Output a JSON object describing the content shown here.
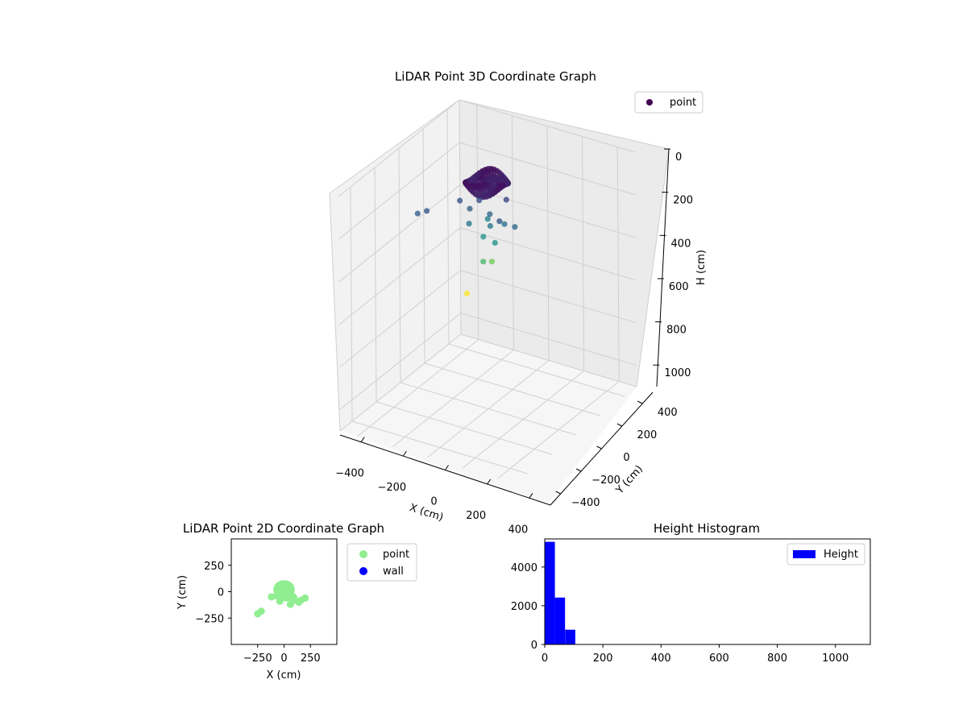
{
  "chart_data": [
    {
      "type": "scatter3d",
      "title": "LiDAR Point 3D Coordinate Graph",
      "xlabel": "X (cm)",
      "ylabel": "Y (cm)",
      "zlabel": "H (cm)",
      "xlim": [
        -500,
        500
      ],
      "ylim": [
        -500,
        500
      ],
      "zlim": [
        0,
        1100
      ],
      "z_inverted": true,
      "x_ticks": [
        -400,
        -200,
        0,
        200,
        400
      ],
      "y_ticks": [
        -400,
        -200,
        0,
        200,
        400
      ],
      "z_ticks": [
        0,
        200,
        400,
        600,
        800,
        1000
      ],
      "grid": true,
      "legend": {
        "position": "top-right",
        "entries": [
          "point"
        ]
      },
      "colormap": "viridis",
      "cluster": {
        "center_x": 0,
        "center_y": 0,
        "center_h": 40,
        "radius": 100
      },
      "outliers": [
        {
          "x": -250,
          "y": -210,
          "h": 150
        },
        {
          "x": -215,
          "y": -185,
          "h": 140
        },
        {
          "x": -120,
          "y": -50,
          "h": 130
        },
        {
          "x": -70,
          "y": -40,
          "h": 160
        },
        {
          "x": -40,
          "y": -90,
          "h": 200
        },
        {
          "x": 20,
          "y": -60,
          "h": 260
        },
        {
          "x": 60,
          "y": -120,
          "h": 340
        },
        {
          "x": -20,
          "y": -140,
          "h": 500
        },
        {
          "x": 40,
          "y": -20,
          "h": 390
        },
        {
          "x": 100,
          "y": -80,
          "h": 260
        },
        {
          "x": 140,
          "y": -100,
          "h": 140
        },
        {
          "x": 90,
          "y": 30,
          "h": 110
        },
        {
          "x": 120,
          "y": -30,
          "h": 190
        },
        {
          "x": -10,
          "y": 20,
          "h": 220
        },
        {
          "x": 30,
          "y": -20,
          "h": 170
        },
        {
          "x": -30,
          "y": -20,
          "h": 120
        },
        {
          "x": 60,
          "y": -60,
          "h": 200
        },
        {
          "x": 200,
          "y": -60,
          "h": 170
        }
      ]
    },
    {
      "type": "scatter",
      "title": "LiDAR Point 2D Coordinate Graph",
      "xlabel": "X (cm)",
      "ylabel": "Y (cm)",
      "xlim": [
        -500,
        500
      ],
      "ylim": [
        -500,
        500
      ],
      "x_ticks": [
        -250,
        0,
        250
      ],
      "y_ticks": [
        -250,
        0,
        250
      ],
      "legend": {
        "position": "outside-right",
        "entries": [
          "point",
          "wall"
        ]
      },
      "series": [
        {
          "name": "point",
          "color": "#90ee90",
          "cluster": {
            "cx": 0,
            "cy": 20,
            "rx": 100,
            "ry": 80
          },
          "points": [
            {
              "x": -250,
              "y": -210
            },
            {
              "x": -215,
              "y": -185
            },
            {
              "x": -120,
              "y": -50
            },
            {
              "x": -70,
              "y": -40
            },
            {
              "x": -40,
              "y": -90
            },
            {
              "x": 20,
              "y": -60
            },
            {
              "x": 60,
              "y": -120
            },
            {
              "x": 100,
              "y": -80
            },
            {
              "x": 140,
              "y": -100
            },
            {
              "x": 90,
              "y": -50
            },
            {
              "x": 160,
              "y": -80
            },
            {
              "x": 200,
              "y": -60
            },
            {
              "x": 60,
              "y": -60
            },
            {
              "x": -30,
              "y": -20
            }
          ]
        },
        {
          "name": "wall",
          "color": "#0000ff",
          "points": []
        }
      ]
    },
    {
      "type": "histogram",
      "title": "Height Histogram",
      "xlim": [
        0,
        1120
      ],
      "ylim": [
        0,
        5450
      ],
      "x_ticks": [
        0,
        200,
        400,
        600,
        800,
        1000
      ],
      "y_ticks": [
        0,
        2000,
        4000
      ],
      "legend": {
        "position": "top-right",
        "entries": [
          "Height"
        ]
      },
      "color": "#0000ff",
      "bins": [
        {
          "start": 0,
          "end": 35,
          "count": 5300
        },
        {
          "start": 35,
          "end": 70,
          "count": 2420
        },
        {
          "start": 70,
          "end": 105,
          "count": 760
        },
        {
          "start": 105,
          "end": 140,
          "count": 8
        },
        {
          "start": 140,
          "end": 175,
          "count": 4
        },
        {
          "start": 175,
          "end": 210,
          "count": 3
        },
        {
          "start": 210,
          "end": 245,
          "count": 2
        },
        {
          "start": 245,
          "end": 280,
          "count": 2
        },
        {
          "start": 280,
          "end": 315,
          "count": 1
        },
        {
          "start": 315,
          "end": 350,
          "count": 1
        },
        {
          "start": 490,
          "end": 525,
          "count": 1
        }
      ]
    }
  ]
}
